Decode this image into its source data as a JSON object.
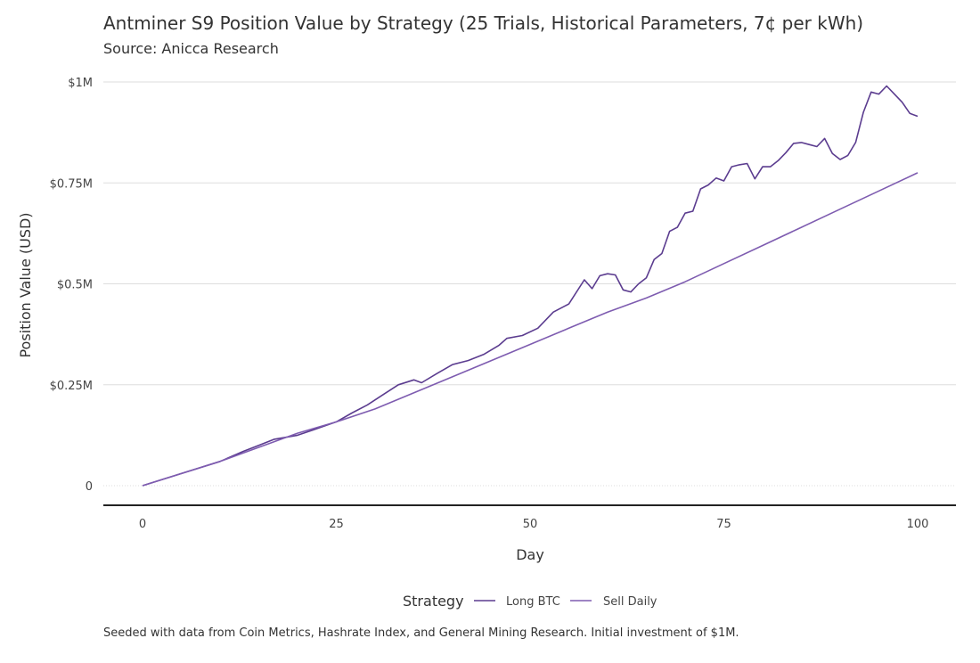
{
  "chart_data": {
    "type": "line",
    "title": "Antminer S9 Position Value by Strategy (25 Trials, Historical Parameters, 7¢ per kWh)",
    "subtitle": "Source: Anicca Research",
    "caption": "Seeded with data from Coin Metrics, Hashrate Index, and General Mining Research. Initial investment of $1M.",
    "xlabel": "Day",
    "ylabel": "Position Value (USD)",
    "xlim": [
      0,
      100
    ],
    "ylim": [
      0,
      1000000
    ],
    "x_ticks": [
      0,
      25,
      50,
      75,
      100
    ],
    "x_tick_labels": [
      "0",
      "25",
      "50",
      "75",
      "100"
    ],
    "y_ticks": [
      0,
      250000,
      500000,
      750000,
      1000000
    ],
    "y_tick_labels": [
      "0",
      "$0.25M",
      "$0.5M",
      "$0.75M",
      "$1M"
    ],
    "grid": "horizontal",
    "legend": {
      "title": "Strategy",
      "placement": "bottom",
      "entries": [
        "Long BTC",
        "Sell Daily"
      ]
    },
    "colors": {
      "long_btc": "#5b3c8f",
      "sell_daily": "#7e5cb0",
      "grid": "#dddddd",
      "axis": "#222222"
    },
    "series": [
      {
        "name": "Long BTC",
        "x": [
          0,
          5,
          10,
          13,
          15,
          17,
          20,
          22,
          25,
          27,
          29,
          31,
          33,
          35,
          36,
          38,
          40,
          42,
          44,
          46,
          47,
          49,
          51,
          53,
          55,
          57,
          58,
          59,
          60,
          61,
          62,
          63,
          64,
          65,
          66,
          67,
          68,
          69,
          70,
          71,
          72,
          73,
          74,
          75,
          76,
          77,
          78,
          79,
          80,
          81,
          82,
          83,
          84,
          85,
          86,
          87,
          88,
          89,
          90,
          91,
          92,
          93,
          94,
          95,
          96,
          97,
          98,
          99,
          100
        ],
        "values": [
          0,
          30000,
          60000,
          85000,
          100000,
          115000,
          125000,
          138000,
          158000,
          180000,
          200000,
          225000,
          250000,
          262000,
          255000,
          278000,
          300000,
          310000,
          325000,
          348000,
          365000,
          372000,
          390000,
          430000,
          450000,
          510000,
          488000,
          520000,
          525000,
          522000,
          485000,
          480000,
          500000,
          515000,
          560000,
          575000,
          630000,
          640000,
          675000,
          680000,
          735000,
          745000,
          762000,
          755000,
          790000,
          795000,
          798000,
          760000,
          790000,
          790000,
          805000,
          825000,
          848000,
          850000,
          845000,
          840000,
          860000,
          823000,
          808000,
          818000,
          850000,
          925000,
          975000,
          970000,
          990000,
          970000,
          950000,
          922000,
          915000
        ]
      },
      {
        "name": "Sell Daily",
        "x": [
          0,
          10,
          20,
          25,
          30,
          40,
          50,
          55,
          60,
          65,
          70,
          75,
          80,
          85,
          90,
          95,
          100
        ],
        "values": [
          0,
          60000,
          130000,
          158000,
          190000,
          270000,
          350000,
          390000,
          430000,
          465000,
          505000,
          550000,
          595000,
          640000,
          685000,
          730000,
          775000
        ]
      }
    ]
  }
}
